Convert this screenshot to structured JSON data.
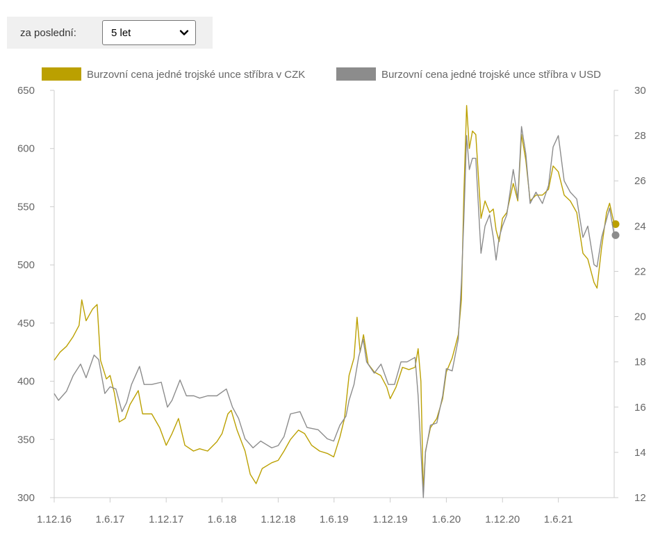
{
  "filter": {
    "label": "za poslední:",
    "selected": "5 let",
    "icon": "chevron-down-icon"
  },
  "chart_data": {
    "type": "line",
    "legend_position": "top",
    "grid": false,
    "x_tick_labels": [
      "1.12.16",
      "1.6.17",
      "1.12.17",
      "1.6.18",
      "1.12.18",
      "1.6.19",
      "1.12.19",
      "1.6.20",
      "1.12.20",
      "1.6.21"
    ],
    "y_left": {
      "min": 300,
      "max": 650,
      "ticks": [
        650,
        600,
        550,
        500,
        450,
        400,
        350,
        300
      ]
    },
    "y_right": {
      "min": 12,
      "max": 30,
      "ticks": [
        30,
        28,
        26,
        24,
        22,
        20,
        18,
        16,
        14,
        12
      ]
    },
    "series": [
      {
        "name": "Burzovní cena jedné trojské unce stříbra v CZK",
        "axis": "left",
        "color": "#bba000",
        "points": [
          [
            "2016-12-01",
            418
          ],
          [
            "2016-12-20",
            425
          ],
          [
            "2017-01-10",
            430
          ],
          [
            "2017-01-31",
            438
          ],
          [
            "2017-02-20",
            448
          ],
          [
            "2017-03-01",
            470
          ],
          [
            "2017-03-15",
            452
          ],
          [
            "2017-04-05",
            462
          ],
          [
            "2017-04-20",
            466
          ],
          [
            "2017-05-01",
            418
          ],
          [
            "2017-05-20",
            402
          ],
          [
            "2017-06-01",
            405
          ],
          [
            "2017-06-15",
            390
          ],
          [
            "2017-07-01",
            365
          ],
          [
            "2017-07-20",
            368
          ],
          [
            "2017-08-05",
            380
          ],
          [
            "2017-09-01",
            392
          ],
          [
            "2017-09-15",
            372
          ],
          [
            "2017-10-15",
            372
          ],
          [
            "2017-11-10",
            360
          ],
          [
            "2017-12-01",
            345
          ],
          [
            "2017-12-20",
            355
          ],
          [
            "2018-01-10",
            368
          ],
          [
            "2018-01-31",
            345
          ],
          [
            "2018-02-28",
            340
          ],
          [
            "2018-03-20",
            342
          ],
          [
            "2018-04-15",
            340
          ],
          [
            "2018-05-15",
            348
          ],
          [
            "2018-06-01",
            355
          ],
          [
            "2018-06-20",
            372
          ],
          [
            "2018-07-01",
            375
          ],
          [
            "2018-07-20",
            358
          ],
          [
            "2018-08-15",
            340
          ],
          [
            "2018-09-01",
            320
          ],
          [
            "2018-09-20",
            312
          ],
          [
            "2018-10-10",
            325
          ],
          [
            "2018-11-10",
            330
          ],
          [
            "2018-12-01",
            332
          ],
          [
            "2018-12-20",
            340
          ],
          [
            "2019-01-10",
            350
          ],
          [
            "2019-02-05",
            358
          ],
          [
            "2019-02-25",
            355
          ],
          [
            "2019-03-20",
            345
          ],
          [
            "2019-04-15",
            340
          ],
          [
            "2019-05-10",
            338
          ],
          [
            "2019-05-31",
            335
          ],
          [
            "2019-06-20",
            352
          ],
          [
            "2019-07-05",
            368
          ],
          [
            "2019-07-20",
            405
          ],
          [
            "2019-08-05",
            420
          ],
          [
            "2019-08-15",
            455
          ],
          [
            "2019-08-25",
            425
          ],
          [
            "2019-09-05",
            440
          ],
          [
            "2019-09-20",
            415
          ],
          [
            "2019-10-10",
            408
          ],
          [
            "2019-10-31",
            405
          ],
          [
            "2019-11-20",
            395
          ],
          [
            "2019-12-01",
            385
          ],
          [
            "2019-12-20",
            395
          ],
          [
            "2020-01-10",
            412
          ],
          [
            "2020-01-31",
            410
          ],
          [
            "2020-02-20",
            412
          ],
          [
            "2020-03-01",
            428
          ],
          [
            "2020-03-10",
            400
          ],
          [
            "2020-03-18",
            305
          ],
          [
            "2020-03-25",
            340
          ],
          [
            "2020-04-10",
            360
          ],
          [
            "2020-05-01",
            368
          ],
          [
            "2020-05-20",
            385
          ],
          [
            "2020-06-01",
            408
          ],
          [
            "2020-06-20",
            420
          ],
          [
            "2020-07-10",
            440
          ],
          [
            "2020-07-20",
            470
          ],
          [
            "2020-07-28",
            560
          ],
          [
            "2020-08-06",
            637
          ],
          [
            "2020-08-15",
            600
          ],
          [
            "2020-08-25",
            615
          ],
          [
            "2020-09-05",
            612
          ],
          [
            "2020-09-22",
            540
          ],
          [
            "2020-10-05",
            555
          ],
          [
            "2020-10-20",
            545
          ],
          [
            "2020-11-01",
            548
          ],
          [
            "2020-11-10",
            530
          ],
          [
            "2020-11-20",
            520
          ],
          [
            "2020-12-01",
            540
          ],
          [
            "2020-12-15",
            545
          ],
          [
            "2021-01-05",
            570
          ],
          [
            "2021-01-20",
            555
          ],
          [
            "2021-02-01",
            612
          ],
          [
            "2021-02-15",
            590
          ],
          [
            "2021-03-01",
            555
          ],
          [
            "2021-03-20",
            560
          ],
          [
            "2021-04-10",
            560
          ],
          [
            "2021-04-30",
            565
          ],
          [
            "2021-05-15",
            585
          ],
          [
            "2021-06-01",
            580
          ],
          [
            "2021-06-20",
            560
          ],
          [
            "2021-07-10",
            555
          ],
          [
            "2021-07-31",
            545
          ],
          [
            "2021-08-20",
            510
          ],
          [
            "2021-09-05",
            505
          ],
          [
            "2021-09-25",
            485
          ],
          [
            "2021-10-05",
            480
          ],
          [
            "2021-10-20",
            515
          ],
          [
            "2021-11-05",
            545
          ],
          [
            "2021-11-15",
            553
          ],
          [
            "2021-11-30",
            535
          ]
        ]
      },
      {
        "name": "Burzovní cena jedné trojské unce stříbra v USD",
        "axis": "right",
        "color": "#8c8c8c",
        "points": [
          [
            "2016-12-01",
            16.6
          ],
          [
            "2016-12-15",
            16.3
          ],
          [
            "2017-01-10",
            16.7
          ],
          [
            "2017-02-01",
            17.4
          ],
          [
            "2017-02-25",
            17.9
          ],
          [
            "2017-03-15",
            17.3
          ],
          [
            "2017-04-10",
            18.3
          ],
          [
            "2017-04-25",
            18.1
          ],
          [
            "2017-05-15",
            16.6
          ],
          [
            "2017-06-01",
            16.9
          ],
          [
            "2017-06-20",
            16.8
          ],
          [
            "2017-07-10",
            15.8
          ],
          [
            "2017-07-25",
            16.2
          ],
          [
            "2017-08-10",
            17.0
          ],
          [
            "2017-09-05",
            17.8
          ],
          [
            "2017-09-20",
            17.0
          ],
          [
            "2017-10-15",
            17.0
          ],
          [
            "2017-11-15",
            17.1
          ],
          [
            "2017-12-05",
            16.0
          ],
          [
            "2017-12-20",
            16.3
          ],
          [
            "2018-01-15",
            17.2
          ],
          [
            "2018-02-05",
            16.5
          ],
          [
            "2018-03-01",
            16.5
          ],
          [
            "2018-03-20",
            16.4
          ],
          [
            "2018-04-15",
            16.5
          ],
          [
            "2018-05-15",
            16.5
          ],
          [
            "2018-06-15",
            16.8
          ],
          [
            "2018-07-05",
            16.0
          ],
          [
            "2018-07-25",
            15.5
          ],
          [
            "2018-08-15",
            14.6
          ],
          [
            "2018-09-10",
            14.2
          ],
          [
            "2018-10-05",
            14.5
          ],
          [
            "2018-11-10",
            14.2
          ],
          [
            "2018-12-01",
            14.3
          ],
          [
            "2018-12-20",
            14.7
          ],
          [
            "2019-01-10",
            15.7
          ],
          [
            "2019-02-10",
            15.8
          ],
          [
            "2019-03-05",
            15.1
          ],
          [
            "2019-04-10",
            15.0
          ],
          [
            "2019-05-10",
            14.6
          ],
          [
            "2019-05-31",
            14.5
          ],
          [
            "2019-06-20",
            15.2
          ],
          [
            "2019-07-10",
            15.6
          ],
          [
            "2019-07-20",
            16.3
          ],
          [
            "2019-08-05",
            17.0
          ],
          [
            "2019-08-20",
            18.2
          ],
          [
            "2019-09-04",
            19.0
          ],
          [
            "2019-09-15",
            18.0
          ],
          [
            "2019-10-10",
            17.5
          ],
          [
            "2019-11-01",
            17.9
          ],
          [
            "2019-11-25",
            17.0
          ],
          [
            "2019-12-15",
            17.0
          ],
          [
            "2020-01-05",
            18.0
          ],
          [
            "2020-01-25",
            18.0
          ],
          [
            "2020-02-20",
            18.2
          ],
          [
            "2020-03-01",
            16.5
          ],
          [
            "2020-03-18",
            12.0
          ],
          [
            "2020-03-25",
            14.0
          ],
          [
            "2020-04-10",
            15.2
          ],
          [
            "2020-05-01",
            15.3
          ],
          [
            "2020-05-20",
            16.5
          ],
          [
            "2020-06-01",
            17.7
          ],
          [
            "2020-06-20",
            17.6
          ],
          [
            "2020-07-10",
            19.0
          ],
          [
            "2020-07-20",
            21.5
          ],
          [
            "2020-07-28",
            24.3
          ],
          [
            "2020-08-06",
            28.0
          ],
          [
            "2020-08-15",
            26.5
          ],
          [
            "2020-08-25",
            27.0
          ],
          [
            "2020-09-05",
            27.0
          ],
          [
            "2020-09-22",
            22.8
          ],
          [
            "2020-10-05",
            24.0
          ],
          [
            "2020-10-20",
            24.5
          ],
          [
            "2020-11-01",
            23.5
          ],
          [
            "2020-11-10",
            22.5
          ],
          [
            "2020-11-20",
            23.5
          ],
          [
            "2020-12-01",
            24.0
          ],
          [
            "2020-12-15",
            24.5
          ],
          [
            "2021-01-05",
            26.5
          ],
          [
            "2021-01-20",
            25.2
          ],
          [
            "2021-02-01",
            28.4
          ],
          [
            "2021-02-15",
            27.2
          ],
          [
            "2021-03-01",
            25.0
          ],
          [
            "2021-03-20",
            25.5
          ],
          [
            "2021-04-10",
            25.0
          ],
          [
            "2021-04-30",
            25.8
          ],
          [
            "2021-05-15",
            27.5
          ],
          [
            "2021-06-01",
            28.0
          ],
          [
            "2021-06-20",
            26.0
          ],
          [
            "2021-07-10",
            25.5
          ],
          [
            "2021-07-31",
            25.2
          ],
          [
            "2021-08-20",
            23.5
          ],
          [
            "2021-09-05",
            24.0
          ],
          [
            "2021-09-25",
            22.3
          ],
          [
            "2021-10-05",
            22.2
          ],
          [
            "2021-10-20",
            23.5
          ],
          [
            "2021-11-05",
            24.3
          ],
          [
            "2021-11-15",
            24.8
          ],
          [
            "2021-11-30",
            23.6
          ]
        ]
      }
    ]
  }
}
